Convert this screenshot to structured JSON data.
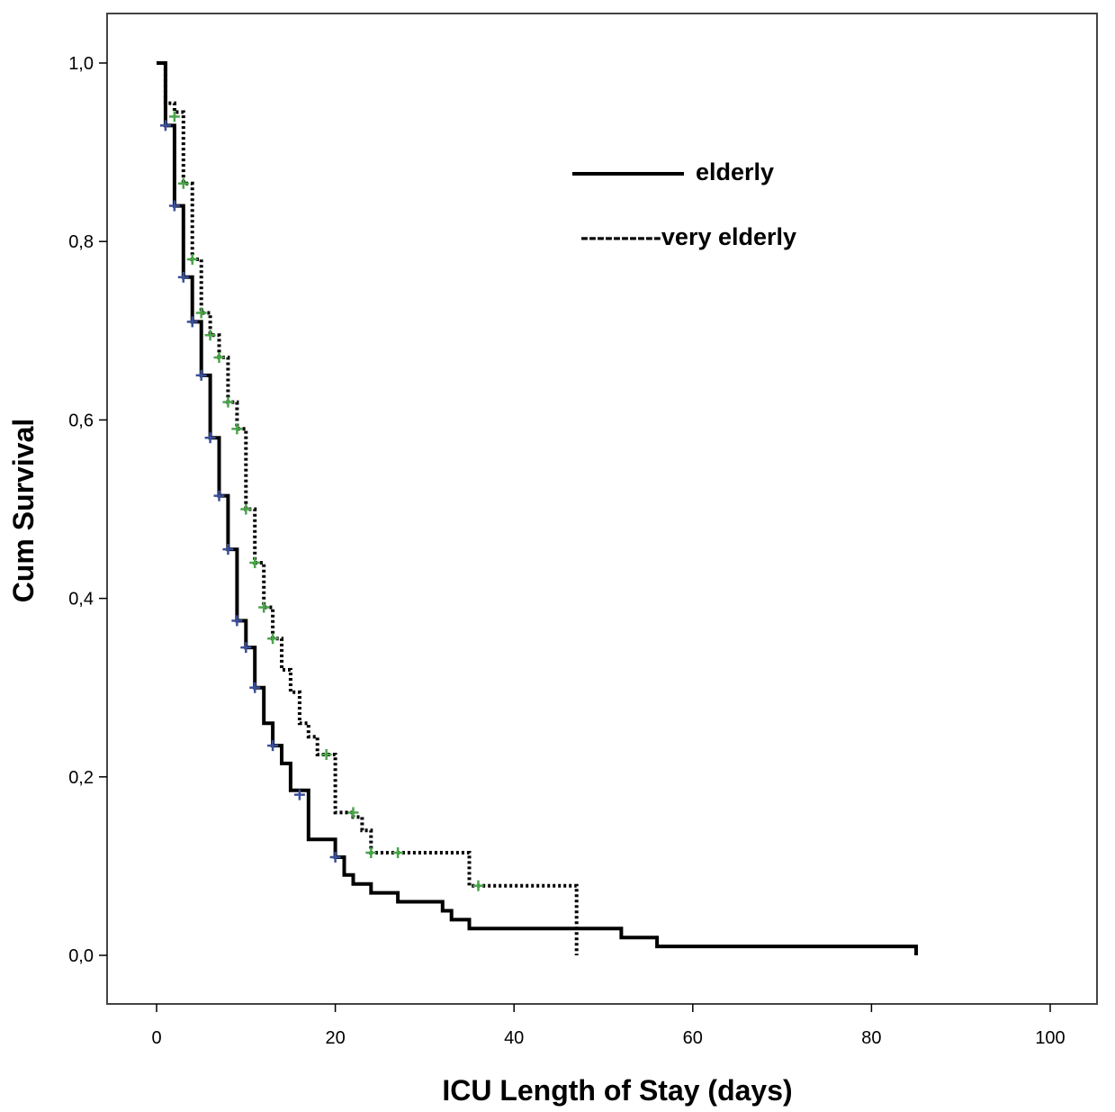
{
  "chart_data": {
    "type": "line",
    "subtype": "kaplan-meier-step",
    "title": "",
    "xlabel": "ICU Length of Stay (days)",
    "ylabel": "Cum Survival",
    "xlim": [
      0,
      100
    ],
    "ylim": [
      0,
      1
    ],
    "xticks": [
      0,
      20,
      40,
      60,
      80,
      100
    ],
    "xtick_labels": [
      "0",
      "20",
      "40",
      "60",
      "80",
      "100"
    ],
    "yticks": [
      0,
      0.2,
      0.4,
      0.6,
      0.8,
      1.0
    ],
    "ytick_labels": [
      "0,0",
      "0,2",
      "0,4",
      "0,6",
      "0,8",
      "1,0"
    ],
    "grid": false,
    "legend_position": "top-right",
    "legend": {
      "elderly_label": "elderly",
      "very_elderly_label": "----------very elderly"
    },
    "series": [
      {
        "name": "elderly",
        "line_style": "solid",
        "color": "#000000",
        "censor_color": "#3a4f9a",
        "steps": [
          [
            0,
            1.0
          ],
          [
            1,
            1.0
          ],
          [
            1,
            0.93
          ],
          [
            2,
            0.93
          ],
          [
            2,
            0.84
          ],
          [
            3,
            0.84
          ],
          [
            3,
            0.76
          ],
          [
            4,
            0.76
          ],
          [
            4,
            0.71
          ],
          [
            5,
            0.71
          ],
          [
            5,
            0.65
          ],
          [
            6,
            0.65
          ],
          [
            6,
            0.58
          ],
          [
            7,
            0.58
          ],
          [
            7,
            0.515
          ],
          [
            8,
            0.515
          ],
          [
            8,
            0.455
          ],
          [
            9,
            0.455
          ],
          [
            9,
            0.375
          ],
          [
            10,
            0.375
          ],
          [
            10,
            0.345
          ],
          [
            11,
            0.345
          ],
          [
            11,
            0.3
          ],
          [
            12,
            0.3
          ],
          [
            12,
            0.26
          ],
          [
            13,
            0.26
          ],
          [
            13,
            0.235
          ],
          [
            14,
            0.235
          ],
          [
            14,
            0.215
          ],
          [
            15,
            0.215
          ],
          [
            15,
            0.185
          ],
          [
            17,
            0.185
          ],
          [
            17,
            0.13
          ],
          [
            20,
            0.13
          ],
          [
            20,
            0.11
          ],
          [
            21,
            0.11
          ],
          [
            21,
            0.09
          ],
          [
            22,
            0.09
          ],
          [
            22,
            0.08
          ],
          [
            24,
            0.08
          ],
          [
            24,
            0.07
          ],
          [
            27,
            0.07
          ],
          [
            27,
            0.06
          ],
          [
            32,
            0.06
          ],
          [
            32,
            0.05
          ],
          [
            33,
            0.05
          ],
          [
            33,
            0.04
          ],
          [
            35,
            0.04
          ],
          [
            35,
            0.03
          ],
          [
            52,
            0.03
          ],
          [
            52,
            0.02
          ],
          [
            56,
            0.02
          ],
          [
            56,
            0.01
          ],
          [
            85,
            0.01
          ],
          [
            85,
            0.0
          ]
        ],
        "censored": [
          [
            1,
            0.93
          ],
          [
            2,
            0.84
          ],
          [
            3,
            0.76
          ],
          [
            4,
            0.71
          ],
          [
            5,
            0.65
          ],
          [
            6,
            0.58
          ],
          [
            7,
            0.515
          ],
          [
            8,
            0.455
          ],
          [
            9,
            0.375
          ],
          [
            10,
            0.345
          ],
          [
            11,
            0.3
          ],
          [
            13,
            0.235
          ],
          [
            16,
            0.18
          ],
          [
            20,
            0.11
          ]
        ]
      },
      {
        "name": "very elderly",
        "line_style": "dotted",
        "color": "#000000",
        "censor_color": "#4aa54a",
        "steps": [
          [
            1,
            1.0
          ],
          [
            1,
            0.955
          ],
          [
            2,
            0.955
          ],
          [
            2,
            0.945
          ],
          [
            3,
            0.945
          ],
          [
            3,
            0.865
          ],
          [
            4,
            0.865
          ],
          [
            4,
            0.78
          ],
          [
            5,
            0.78
          ],
          [
            5,
            0.72
          ],
          [
            6,
            0.72
          ],
          [
            6,
            0.695
          ],
          [
            7,
            0.695
          ],
          [
            7,
            0.67
          ],
          [
            8,
            0.67
          ],
          [
            8,
            0.62
          ],
          [
            9,
            0.62
          ],
          [
            9,
            0.59
          ],
          [
            10,
            0.59
          ],
          [
            10,
            0.5
          ],
          [
            11,
            0.5
          ],
          [
            11,
            0.44
          ],
          [
            12,
            0.44
          ],
          [
            12,
            0.39
          ],
          [
            13,
            0.39
          ],
          [
            13,
            0.355
          ],
          [
            14,
            0.355
          ],
          [
            14,
            0.32
          ],
          [
            15,
            0.32
          ],
          [
            15,
            0.295
          ],
          [
            16,
            0.295
          ],
          [
            16,
            0.26
          ],
          [
            17,
            0.26
          ],
          [
            17,
            0.245
          ],
          [
            18,
            0.245
          ],
          [
            18,
            0.225
          ],
          [
            20,
            0.225
          ],
          [
            20,
            0.16
          ],
          [
            22,
            0.16
          ],
          [
            22,
            0.155
          ],
          [
            23,
            0.155
          ],
          [
            23,
            0.14
          ],
          [
            24,
            0.14
          ],
          [
            24,
            0.115
          ],
          [
            35,
            0.115
          ],
          [
            35,
            0.078
          ],
          [
            47,
            0.078
          ],
          [
            47,
            0.0
          ]
        ],
        "censored": [
          [
            2,
            0.94
          ],
          [
            3,
            0.865
          ],
          [
            4,
            0.78
          ],
          [
            5,
            0.72
          ],
          [
            6,
            0.695
          ],
          [
            7,
            0.67
          ],
          [
            8,
            0.62
          ],
          [
            9,
            0.59
          ],
          [
            10,
            0.5
          ],
          [
            11,
            0.44
          ],
          [
            12,
            0.39
          ],
          [
            13,
            0.355
          ],
          [
            19,
            0.225
          ],
          [
            22,
            0.16
          ],
          [
            24,
            0.115
          ],
          [
            27,
            0.115
          ],
          [
            36,
            0.078
          ]
        ]
      }
    ]
  }
}
